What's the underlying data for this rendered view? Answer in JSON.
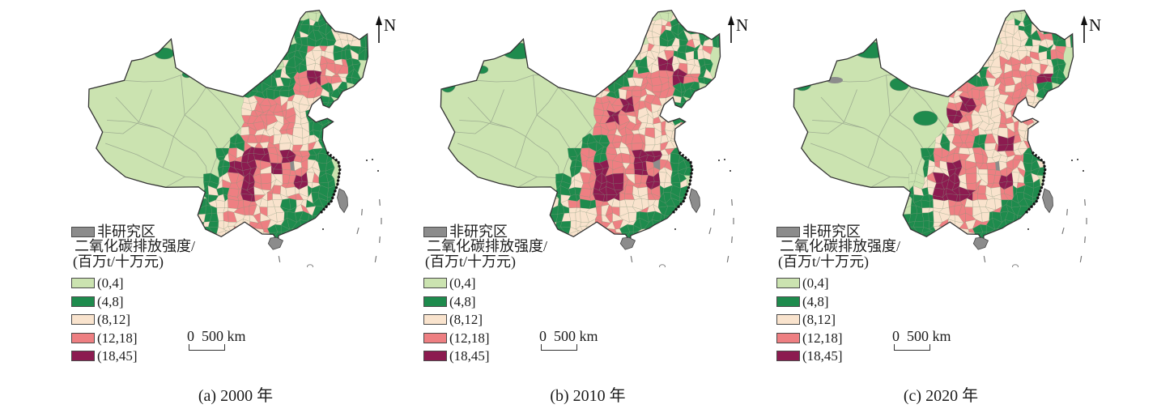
{
  "legend": {
    "non_study": {
      "label": "非研究区",
      "color": "#8c8c8c"
    },
    "title_line1": "二氧化碳排放强度/",
    "title_line2": "(百万t/十万元)",
    "classes": [
      {
        "label": "(0,4]",
        "color": "#cbe3b0"
      },
      {
        "label": "(4,8]",
        "color": "#1e8b4d"
      },
      {
        "label": "(8,12]",
        "color": "#f9e3cd"
      },
      {
        "label": "(12,18]",
        "color": "#ee7f82"
      },
      {
        "label": "(18,45]",
        "color": "#8c1b50"
      }
    ]
  },
  "scale_bar": {
    "zero": "0",
    "distance": "500",
    "unit": "km"
  },
  "north_label": "N",
  "map_style": {
    "outline_color": "#333333",
    "cell_stroke": "#7d8f78",
    "province_line": "#9fae92",
    "island_mark": "#777777"
  },
  "panels": [
    {
      "caption": "(a) 2000 年",
      "grid": [
        ".........01...",
        "........11121.",
        "........111221",
        ".......1122111",
        "......0112331.",
        ".....11134331.",
        "....11113311..",
        "....2333221...",
        "....3333211...",
        "....3323211...",
        "...13332221...",
        "..134434311...",
        "..14434g321...",
        ".1234323421...",
        ".1134232211...",
        "11233221211...",
        "1122232111....",
        ".12222111.....",
        "......1......."
      ],
      "west_green": [
        [
          203,
          66,
          12,
          7
        ],
        [
          231,
          92,
          6,
          4
        ]
      ],
      "west_gray": []
    },
    {
      "caption": "(b) 2010 年",
      "grid": [
        ".........02...",
        "........22112.",
        "........211211",
        "......1222112.",
        "......0124321.",
        ".....11333431.",
        "....21333311..",
        "....3343321...",
        "....3433221...",
        "....3332222...",
        "...11333222...",
        "..1313344211..",
        "..134334g211..",
        ".1234433421...",
        ".1134432311...",
        "11213322211...",
        "1122332111....",
        ".12223111.....",
        "......1......."
      ],
      "west_green": [
        [
          205,
          63,
          20,
          10
        ],
        [
          118,
          103,
          10,
          11
        ],
        [
          160,
          86,
          8,
          5
        ]
      ],
      "west_gray": []
    },
    {
      "caption": "(c) 2020 年",
      "grid": [
        ".........01...",
        "........21111.",
        "........221211",
        "......1222212.",
        "......1233221.",
        ".....11333341.",
        "....23323321..",
        "....3432232...",
        "....4322322...",
        "....3322222...",
        "...12313422...",
        "..1333322211..",
        "..12433g3211..",
        ".0244323421...",
        ".1144432311...",
        "01123322111...",
        "1112233111....",
        ".11222111.....",
        "......1......."
      ],
      "west_green": [
        [
          205,
          62,
          22,
          10
        ],
        [
          120,
          101,
          12,
          11
        ],
        [
          147,
          88,
          9,
          6
        ],
        [
          240,
          104,
          12,
          8
        ],
        [
          272,
          146,
          15,
          9
        ]
      ],
      "west_gray": [
        [
          160,
          99,
          10,
          4
        ]
      ]
    }
  ]
}
